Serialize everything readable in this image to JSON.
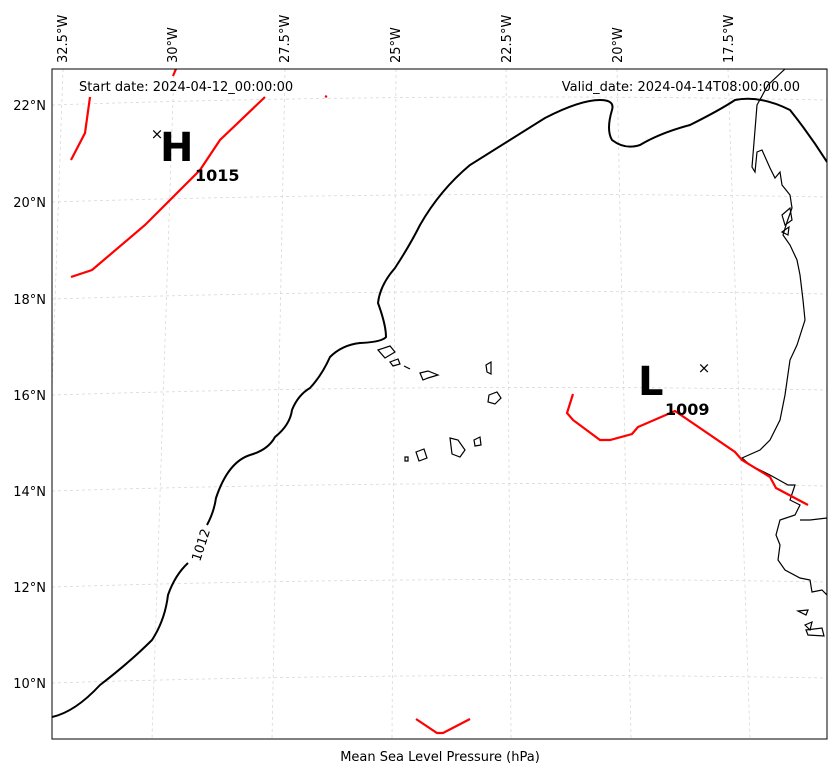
{
  "map": {
    "start_date": "Start date: 2024-04-12_00:00:00",
    "valid_date": "Valid_date: 2024-04-14T08:00:00.00",
    "xlabel": "Mean Sea Level Pressure (hPa)",
    "lon_labels": [
      "32.5°W",
      "30°W",
      "27.5°W",
      "25°W",
      "22.5°W",
      "20°W",
      "17.5°W"
    ],
    "lat_labels": [
      "22°N",
      "20°N",
      "18°N",
      "16°N",
      "14°N",
      "12°N",
      "10°N"
    ],
    "high": {
      "letter": "H",
      "value": "1015",
      "marker": "×"
    },
    "low": {
      "letter": "L",
      "value": "1009",
      "marker": "×"
    },
    "isobar_label": "1012",
    "colors": {
      "front": "#ff0000",
      "isobar": "#000000",
      "grid": "#d8d8d8"
    }
  }
}
